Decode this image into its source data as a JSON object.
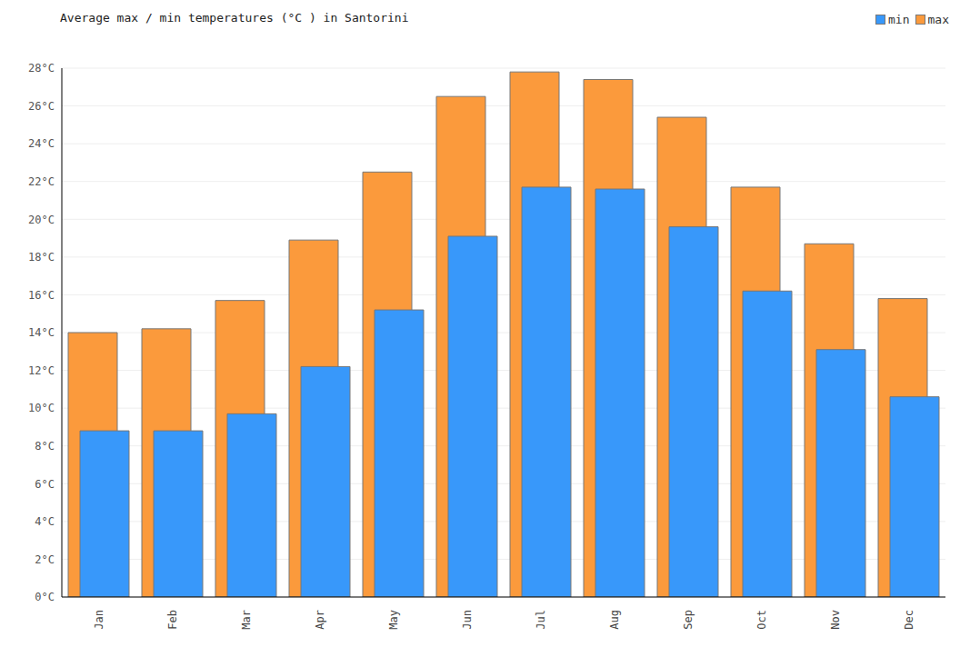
{
  "chart_data": {
    "type": "bar",
    "title": "Average max / min temperatures (°C ) in Santorini",
    "categories": [
      "Jan",
      "Feb",
      "Mar",
      "Apr",
      "May",
      "Jun",
      "Jul",
      "Aug",
      "Sep",
      "Oct",
      "Nov",
      "Dec"
    ],
    "series": [
      {
        "name": "min",
        "color": "#3898fa",
        "values": [
          8.8,
          8.8,
          9.7,
          12.2,
          15.2,
          19.1,
          21.7,
          21.6,
          19.6,
          16.2,
          13.1,
          10.6
        ]
      },
      {
        "name": "max",
        "color": "#fb9a3c",
        "values": [
          14.0,
          14.2,
          15.7,
          18.9,
          22.5,
          26.5,
          27.8,
          27.4,
          25.4,
          21.7,
          18.7,
          15.8
        ]
      }
    ],
    "ylim": [
      0,
      28
    ],
    "yticks": [
      {
        "value": 0,
        "label": "0°C"
      },
      {
        "value": 2,
        "label": "2°C"
      },
      {
        "value": 4,
        "label": "4°C"
      },
      {
        "value": 6,
        "label": "6°C"
      },
      {
        "value": 8,
        "label": "8°C"
      },
      {
        "value": 10,
        "label": "10°C"
      },
      {
        "value": 12,
        "label": "12°C"
      },
      {
        "value": 14,
        "label": "14°C"
      },
      {
        "value": 16,
        "label": "16°C"
      },
      {
        "value": 18,
        "label": "18°C"
      },
      {
        "value": 20,
        "label": "20°C"
      },
      {
        "value": 22,
        "label": "22°C"
      },
      {
        "value": 24,
        "label": "24°C"
      },
      {
        "value": 26,
        "label": "26°C"
      },
      {
        "value": 28,
        "label": "28°C"
      }
    ],
    "grid": true,
    "legend": "top-right"
  }
}
